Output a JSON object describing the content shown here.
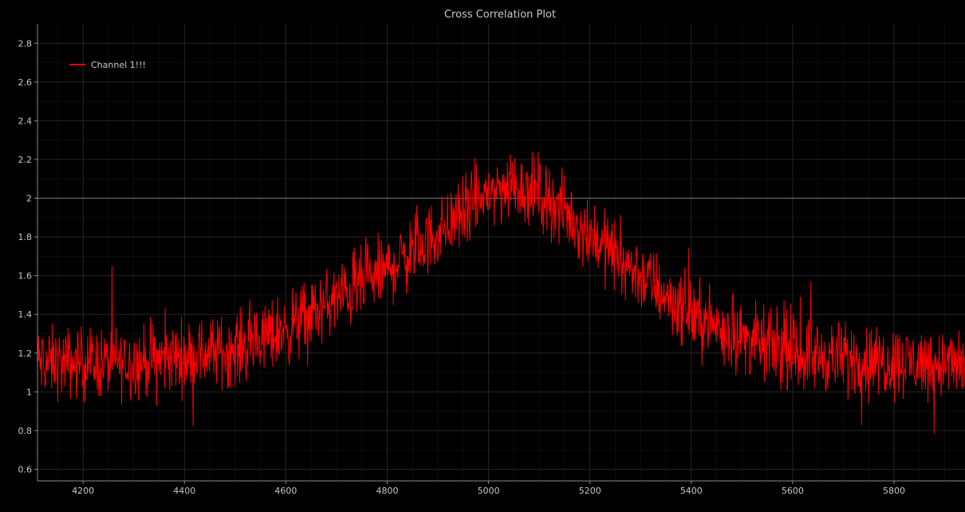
{
  "chart_data": {
    "type": "line",
    "title": "Cross Correlation Plot",
    "xlabel": "",
    "ylabel": "",
    "xlim": [
      4110,
      5940
    ],
    "ylim": [
      0.54,
      2.9
    ],
    "xticks": [
      4200,
      4400,
      4600,
      4800,
      5000,
      5200,
      5400,
      5600,
      5800
    ],
    "yticks": [
      0.6,
      0.8,
      1,
      1.2,
      1.4,
      1.6,
      1.8,
      2,
      2.2,
      2.4,
      2.6,
      2.8
    ],
    "xtick_labels": [
      "4200",
      "4400",
      "4600",
      "4800",
      "5000",
      "5200",
      "5400",
      "5600",
      "5800"
    ],
    "ytick_labels": [
      "0.6",
      "0.8",
      "1",
      "1.2",
      "1.4",
      "1.6",
      "1.8",
      "2",
      "2.2",
      "2.4",
      "2.6",
      "2.8"
    ],
    "grid": true,
    "legend_position": "top-left",
    "reference_line_y": 2,
    "series": [
      {
        "name": "Channel 1!!!",
        "color": "#ff0000",
        "x_start": 4110,
        "x_end": 5940,
        "x_step": 1,
        "envelope": {
          "x": [
            4110,
            4300,
            4500,
            4600,
            4700,
            4800,
            4900,
            5000,
            5050,
            5100,
            5200,
            5300,
            5400,
            5500,
            5600,
            5700,
            5940
          ],
          "y": [
            1.15,
            1.15,
            1.22,
            1.32,
            1.48,
            1.63,
            1.82,
            2.03,
            2.07,
            2.03,
            1.82,
            1.6,
            1.4,
            1.28,
            1.2,
            1.17,
            1.14
          ]
        },
        "noise_amplitude": 0.2
      }
    ]
  },
  "colors": {
    "background": "#000000",
    "grid": "#262626",
    "axis": "#8a8a8a",
    "text": "#c8c8c8",
    "reference_line": "#7a7a7a",
    "series": "#ff0000"
  }
}
